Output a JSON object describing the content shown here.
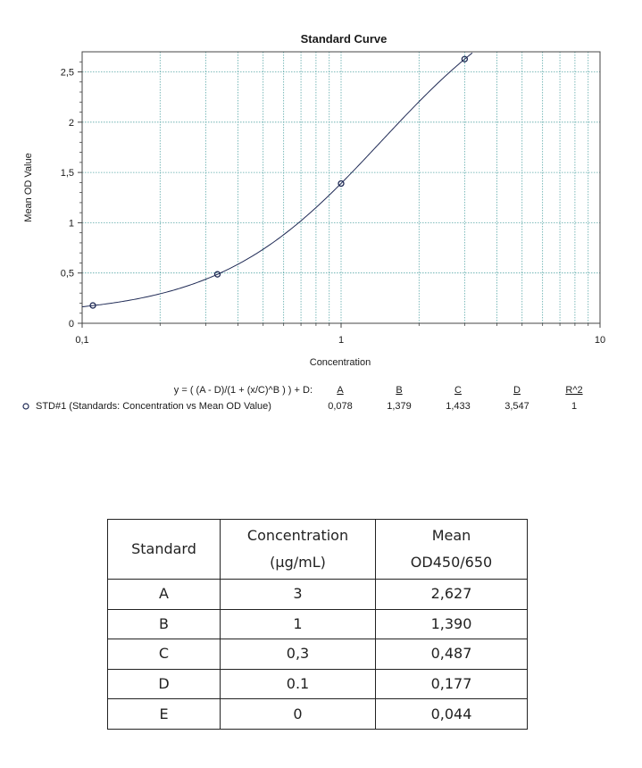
{
  "chart_data": {
    "type": "scatter",
    "title": "Standard Curve",
    "xlabel": "Concentration",
    "ylabel": "Mean OD Value",
    "x_scale": "log",
    "xlim": [
      0.1,
      10
    ],
    "ylim": [
      0,
      2.7
    ],
    "grid": true,
    "x_ticks": [
      "0,1",
      "1",
      "10"
    ],
    "y_ticks": [
      "0",
      "0,5",
      "1",
      "1,5",
      "2",
      "2,5"
    ],
    "series": [
      {
        "name": "STD#1 (Standards: Concentration vs Mean OD Value)",
        "x": [
          0.11,
          0.333,
          1.0,
          3.0
        ],
        "y": [
          0.177,
          0.487,
          1.39,
          2.627
        ]
      }
    ],
    "fit": {
      "equation": "y = ( (A - D)/(1 + (x/C)^B ) ) + D:",
      "headers": [
        "A",
        "B",
        "C",
        "D",
        "R^2"
      ],
      "values": [
        "0,078",
        "1,379",
        "1,433",
        "3,547",
        "1"
      ],
      "A": 0.078,
      "B": 1.379,
      "C": 1.433,
      "D": 3.547
    },
    "colors": {
      "curve": "#1f2a55",
      "marker": "#1f2a55",
      "grid": "#5aa8a8",
      "axis": "#444444"
    }
  },
  "table": {
    "headers": [
      "Standard",
      "Concentration (µg/mL)",
      "Mean OD450/650"
    ],
    "header_lines": [
      [
        "Standard"
      ],
      [
        "Concentration",
        "(µg/mL)"
      ],
      [
        "Mean",
        "OD450/650"
      ]
    ],
    "rows": [
      [
        "A",
        "3",
        "2,627"
      ],
      [
        "B",
        "1",
        "1,390"
      ],
      [
        "C",
        "0,3",
        "0,487"
      ],
      [
        "D",
        "0.1",
        "0,177"
      ],
      [
        "E",
        "0",
        "0,044"
      ]
    ]
  }
}
